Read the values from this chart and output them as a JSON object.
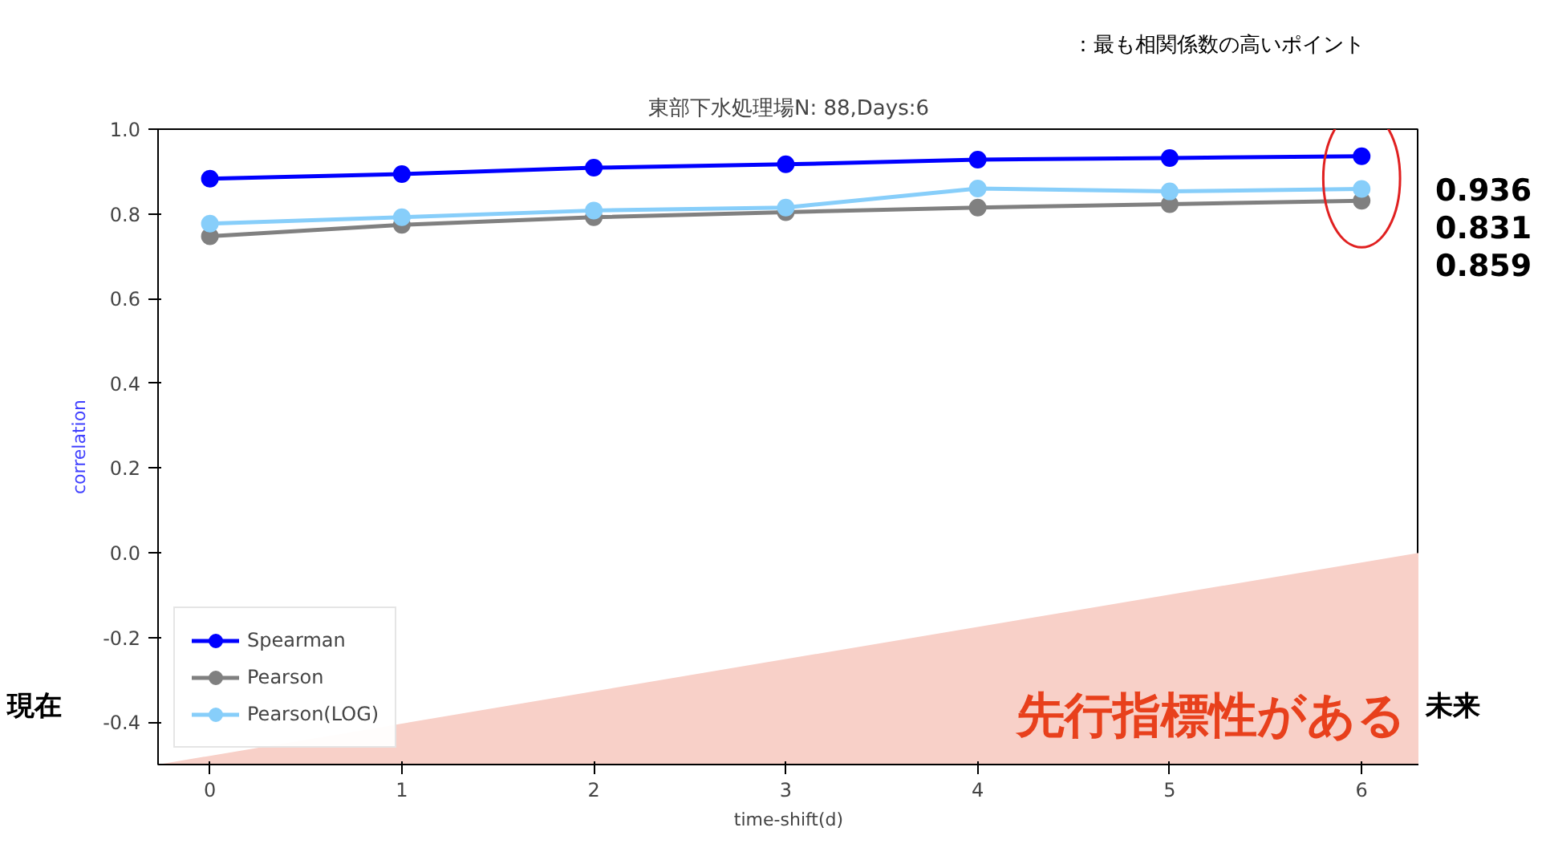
{
  "chart_data": {
    "type": "line",
    "title": "東部下水処理場N: 88,Days:6",
    "xlabel": "time-shift(d)",
    "ylabel": "correlation",
    "x": [
      0,
      1,
      2,
      3,
      4,
      5,
      6
    ],
    "series": [
      {
        "name": "Spearman",
        "color": "#0000ff",
        "values": [
          0.883,
          0.894,
          0.909,
          0.917,
          0.928,
          0.932,
          0.936
        ]
      },
      {
        "name": "Pearson",
        "color": "#808080",
        "values": [
          0.747,
          0.774,
          0.792,
          0.804,
          0.815,
          0.823,
          0.831
        ]
      },
      {
        "name": "Pearson(LOG)",
        "color": "#87cefa",
        "values": [
          0.777,
          0.792,
          0.808,
          0.815,
          0.86,
          0.853,
          0.859
        ]
      }
    ],
    "xlim": [
      -0.27,
      6.3
    ],
    "ylim": [
      -0.5,
      1.0
    ],
    "xticks": [
      0,
      1,
      2,
      3,
      4,
      5,
      6
    ],
    "yticks": [
      -0.4,
      -0.2,
      {
        "value": 0,
        "label": "0.0"
      },
      0.2,
      0.4,
      0.6,
      0.8,
      {
        "value": 1,
        "label": "1.0"
      }
    ],
    "grid": false,
    "legend": "bottom left",
    "marker": "circle",
    "line_style": "solid",
    "annotations": [
      "：最も相関係数の高いポイント",
      "先行指標性がある",
      "現在",
      "未来",
      "0.936",
      "0.831",
      "0.859"
    ]
  }
}
